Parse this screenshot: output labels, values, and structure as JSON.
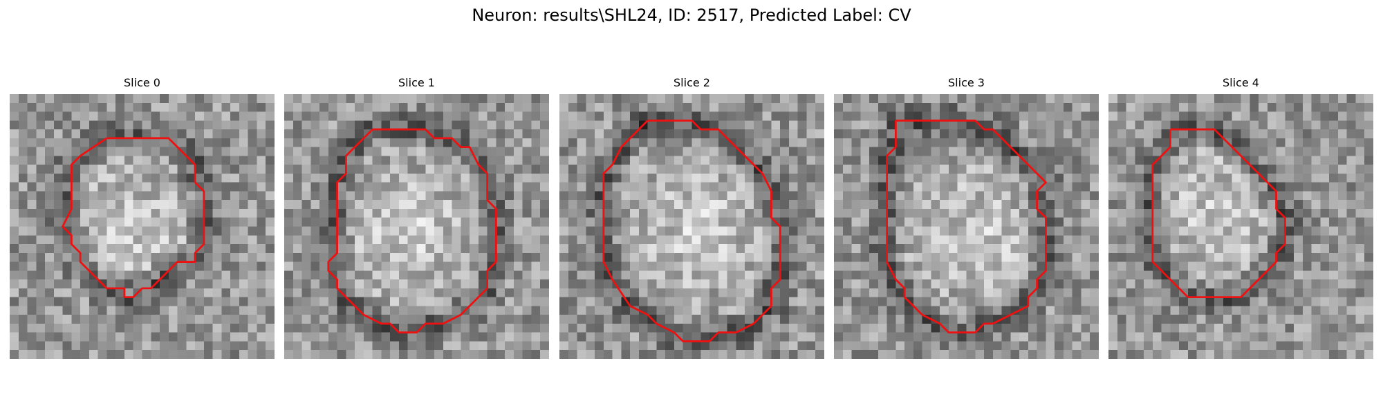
{
  "figure": {
    "title": "Neuron: results\\SHL24, ID: 2517, Predicted Label: CV"
  },
  "colors": {
    "contour": "#ee1111",
    "background": "#ffffff"
  },
  "image_grid": {
    "rows": 30,
    "cols": 30
  },
  "slices": [
    {
      "title": "Slice 0",
      "contour": [
        [
          11,
          5
        ],
        [
          18,
          5
        ],
        [
          21,
          8
        ],
        [
          21,
          10
        ],
        [
          22,
          11
        ],
        [
          22,
          17
        ],
        [
          21,
          18
        ],
        [
          21,
          19
        ],
        [
          19,
          19
        ],
        [
          18,
          20
        ],
        [
          16,
          22
        ],
        [
          15,
          22
        ],
        [
          14,
          23
        ],
        [
          13,
          23
        ],
        [
          13,
          22
        ],
        [
          12,
          22
        ],
        [
          11,
          22
        ],
        [
          9,
          20
        ],
        [
          8,
          19
        ],
        [
          8,
          18
        ],
        [
          7,
          17
        ],
        [
          7,
          16
        ],
        [
          6,
          15
        ],
        [
          7,
          13
        ],
        [
          7,
          8
        ],
        [
          8,
          7
        ],
        [
          11,
          5
        ]
      ]
    },
    {
      "title": "Slice 1",
      "contour": [
        [
          10,
          4
        ],
        [
          16,
          4
        ],
        [
          17,
          5
        ],
        [
          19,
          5
        ],
        [
          20,
          6
        ],
        [
          21,
          6
        ],
        [
          22,
          8
        ],
        [
          23,
          9
        ],
        [
          23,
          12
        ],
        [
          24,
          13
        ],
        [
          24,
          19
        ],
        [
          23,
          20
        ],
        [
          23,
          22
        ],
        [
          21,
          24
        ],
        [
          20,
          25
        ],
        [
          18,
          26
        ],
        [
          16,
          26
        ],
        [
          15,
          27
        ],
        [
          13,
          27
        ],
        [
          12,
          26
        ],
        [
          11,
          26
        ],
        [
          9,
          25
        ],
        [
          7,
          23
        ],
        [
          6,
          22
        ],
        [
          6,
          21
        ],
        [
          5,
          20
        ],
        [
          5,
          19
        ],
        [
          6,
          18
        ],
        [
          6,
          10
        ],
        [
          7,
          9
        ],
        [
          7,
          7
        ],
        [
          8,
          6
        ],
        [
          10,
          4
        ]
      ]
    },
    {
      "title": "Slice 2",
      "contour": [
        [
          10,
          3
        ],
        [
          15,
          3
        ],
        [
          16,
          4
        ],
        [
          18,
          4
        ],
        [
          19,
          5
        ],
        [
          20,
          6
        ],
        [
          22,
          8
        ],
        [
          23,
          9
        ],
        [
          24,
          11
        ],
        [
          24,
          14
        ],
        [
          25,
          15
        ],
        [
          25,
          21
        ],
        [
          24,
          22
        ],
        [
          24,
          24
        ],
        [
          22,
          26
        ],
        [
          22,
          26
        ],
        [
          20,
          27
        ],
        [
          18,
          27
        ],
        [
          17,
          28
        ],
        [
          14,
          28
        ],
        [
          13,
          27
        ],
        [
          11,
          26
        ],
        [
          10,
          25
        ],
        [
          8,
          24
        ],
        [
          6,
          21
        ],
        [
          5,
          19
        ],
        [
          5,
          9
        ],
        [
          6,
          8
        ],
        [
          7,
          6
        ],
        [
          8,
          5
        ],
        [
          10,
          3
        ]
      ]
    },
    {
      "title": "Slice 3",
      "contour": [
        [
          7,
          3
        ],
        [
          16,
          3
        ],
        [
          17,
          4
        ],
        [
          18,
          4
        ],
        [
          19,
          5
        ],
        [
          21,
          7
        ],
        [
          22,
          8
        ],
        [
          23,
          9
        ],
        [
          24,
          10
        ],
        [
          23,
          11
        ],
        [
          23,
          13
        ],
        [
          24,
          14
        ],
        [
          24,
          20
        ],
        [
          23,
          21
        ],
        [
          23,
          22
        ],
        [
          22,
          23
        ],
        [
          22,
          24
        ],
        [
          20,
          25
        ],
        [
          18,
          26
        ],
        [
          17,
          26
        ],
        [
          16,
          27
        ],
        [
          14,
          27
        ],
        [
          13,
          27
        ],
        [
          12,
          26
        ],
        [
          10,
          25
        ],
        [
          9,
          24
        ],
        [
          8,
          23
        ],
        [
          8,
          22
        ],
        [
          7,
          21
        ],
        [
          6,
          19
        ],
        [
          6,
          7
        ],
        [
          7,
          6
        ],
        [
          7,
          3
        ]
      ]
    },
    {
      "title": "Slice 4",
      "contour": [
        [
          7,
          4
        ],
        [
          12,
          4
        ],
        [
          13,
          5
        ],
        [
          14,
          6
        ],
        [
          16,
          8
        ],
        [
          17,
          9
        ],
        [
          19,
          11
        ],
        [
          19,
          13
        ],
        [
          20,
          14
        ],
        [
          20,
          17
        ],
        [
          19,
          18
        ],
        [
          19,
          19
        ],
        [
          18,
          20
        ],
        [
          16,
          22
        ],
        [
          15,
          23
        ],
        [
          9,
          23
        ],
        [
          8,
          22
        ],
        [
          7,
          21
        ],
        [
          5,
          19
        ],
        [
          5,
          8
        ],
        [
          6,
          7
        ],
        [
          7,
          6
        ],
        [
          7,
          4
        ]
      ]
    }
  ]
}
